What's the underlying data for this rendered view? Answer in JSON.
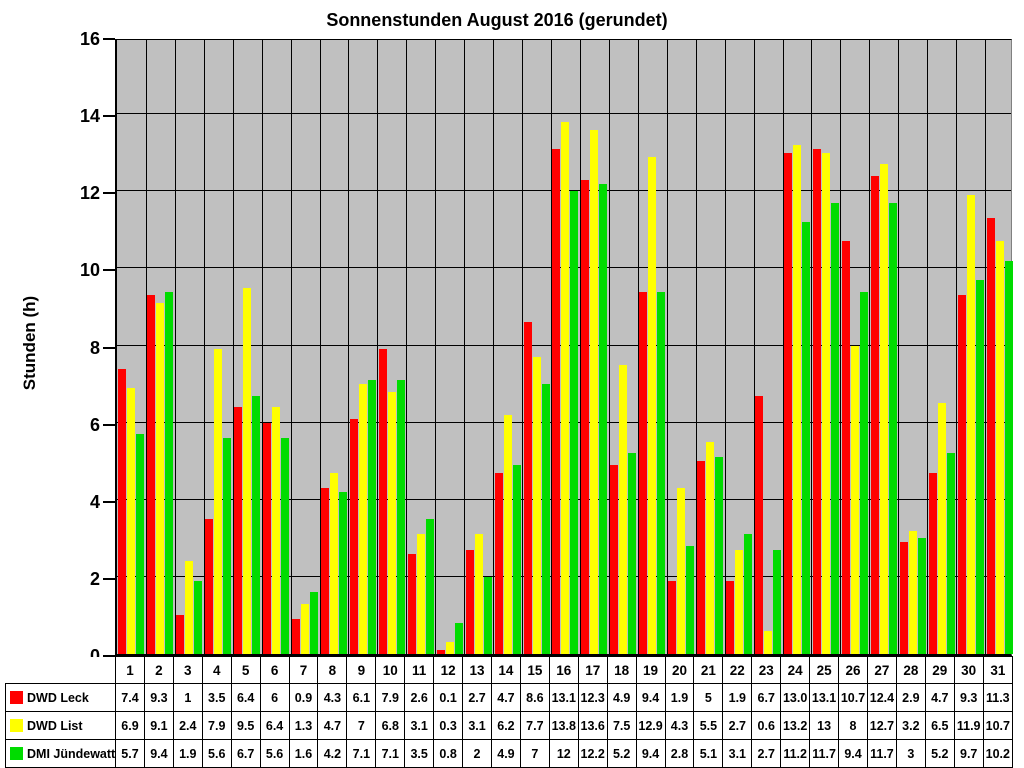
{
  "chart_data": {
    "type": "bar",
    "title": "Sonnenstunden August 2016 (gerundet)",
    "ylabel": "Stunden (h)",
    "xlabel": "",
    "ylim": [
      0,
      16
    ],
    "yticks": [
      0,
      2,
      4,
      6,
      8,
      10,
      12,
      14,
      16
    ],
    "grid": true,
    "plot_bg_color": "#c0c0c0",
    "gridline_color": "#000000",
    "legend_position": "bottom-left-table",
    "categories": [
      "1",
      "2",
      "3",
      "4",
      "5",
      "6",
      "7",
      "8",
      "9",
      "10",
      "11",
      "12",
      "13",
      "14",
      "15",
      "16",
      "17",
      "18",
      "19",
      "20",
      "21",
      "22",
      "23",
      "24",
      "25",
      "26",
      "27",
      "28",
      "29",
      "30",
      "31"
    ],
    "series": [
      {
        "name": "DWD Leck",
        "color": "#ff0000",
        "values": [
          "7.4",
          "9.3",
          "1",
          "3.5",
          "6.4",
          "6",
          "0.9",
          "4.3",
          "6.1",
          "7.9",
          "2.6",
          "0.1",
          "2.7",
          "4.7",
          "8.6",
          "13.1",
          "12.3",
          "4.9",
          "9.4",
          "1.9",
          "5",
          "1.9",
          "6.7",
          "13.0",
          "13.1",
          "10.7",
          "12.4",
          "2.9",
          "4.7",
          "9.3",
          "11.3"
        ]
      },
      {
        "name": "DWD List",
        "color": "#ffff00",
        "values": [
          "6.9",
          "9.1",
          "2.4",
          "7.9",
          "9.5",
          "6.4",
          "1.3",
          "4.7",
          "7",
          "6.8",
          "3.1",
          "0.3",
          "3.1",
          "6.2",
          "7.7",
          "13.8",
          "13.6",
          "7.5",
          "12.9",
          "4.3",
          "5.5",
          "2.7",
          "0.6",
          "13.2",
          "13",
          "8",
          "12.7",
          "3.2",
          "6.5",
          "11.9",
          "10.7"
        ]
      },
      {
        "name": "DMI Jündewatt",
        "color": "#00dc00",
        "values": [
          "5.7",
          "9.4",
          "1.9",
          "5.6",
          "6.7",
          "5.6",
          "1.6",
          "4.2",
          "7.1",
          "7.1",
          "3.5",
          "0.8",
          "2",
          "4.9",
          "7",
          "12",
          "12.2",
          "5.2",
          "9.4",
          "2.8",
          "5.1",
          "3.1",
          "2.7",
          "11.2",
          "11.7",
          "9.4",
          "11.7",
          "3",
          "5.2",
          "9.7",
          "10.2"
        ]
      }
    ]
  }
}
